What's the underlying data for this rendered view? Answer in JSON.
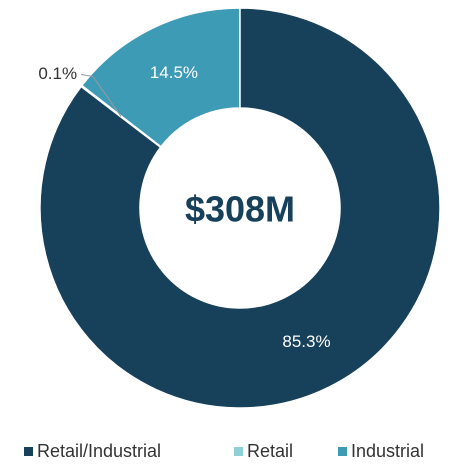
{
  "chart_data": {
    "type": "donut",
    "center_label": "$308M",
    "categories": [
      "Retail/Industrial",
      "Retail",
      "Industrial"
    ],
    "values": [
      85.3,
      0.1,
      14.5
    ],
    "value_labels": [
      "85.3%",
      "0.1%",
      "14.5%"
    ],
    "colors": [
      "#17415a",
      "#8fd0d6",
      "#3e9bb5"
    ],
    "legend": "bottom"
  }
}
